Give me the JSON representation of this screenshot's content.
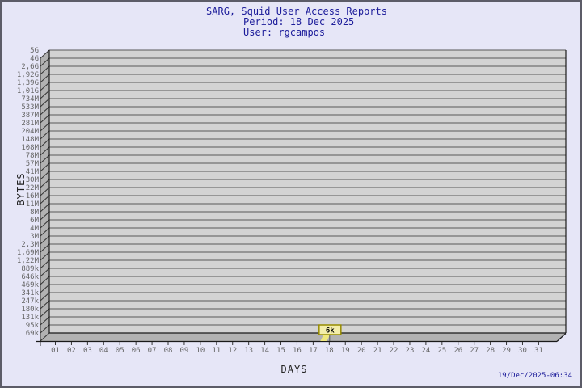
{
  "header": {
    "title": "SARG, Squid User Access Reports",
    "period": "Period: 18 Dec 2025",
    "user": "User: rgcampos"
  },
  "footer": {
    "timestamp": "19/Dec/2025-06:34"
  },
  "chart_data": {
    "type": "bar",
    "title": "SARG, Squid User Access Reports",
    "subtitle": [
      "Period: 18 Dec 2025",
      "User: rgcampos"
    ],
    "xlabel": "DAYS",
    "ylabel": "BYTES",
    "y_scale": "log",
    "grid": true,
    "x_ticks": [
      "01",
      "02",
      "03",
      "04",
      "05",
      "06",
      "07",
      "08",
      "09",
      "10",
      "11",
      "12",
      "13",
      "14",
      "15",
      "16",
      "17",
      "18",
      "19",
      "20",
      "21",
      "22",
      "23",
      "24",
      "25",
      "26",
      "27",
      "28",
      "29",
      "30",
      "31"
    ],
    "y_ticks_top_to_bottom": [
      "5G",
      "4G",
      "2,6G",
      "1,92G",
      "1,39G",
      "1,01G",
      "734M",
      "533M",
      "387M",
      "281M",
      "204M",
      "148M",
      "108M",
      "78M",
      "57M",
      "41M",
      "30M",
      "22M",
      "16M",
      "11M",
      "8M",
      "6M",
      "4M",
      "3M",
      "2,3M",
      "1,69M",
      "1,22M",
      "889k",
      "646k",
      "469k",
      "341k",
      "247k",
      "180k",
      "131k",
      "95k",
      "69k"
    ],
    "series": [
      {
        "name": "bytes",
        "points": [
          {
            "x": "18",
            "label": "6k"
          }
        ]
      }
    ],
    "annotation": {
      "x": "18",
      "label": "6k"
    }
  },
  "colors": {
    "background": "#e6e6f7",
    "frame_border": "#5c5c68",
    "title_text": "#1c1c9a",
    "tick_text": "#666666",
    "axis_title_text": "#222222",
    "plot_bg": "#d3d3d3",
    "grid_line": "#585858",
    "wall": "#b2b2b2",
    "frame_line": "#1a1a1a",
    "flag_fill": "#f4eeaa",
    "flag_border": "#968b00",
    "bar_fill": "#f0e87e"
  }
}
